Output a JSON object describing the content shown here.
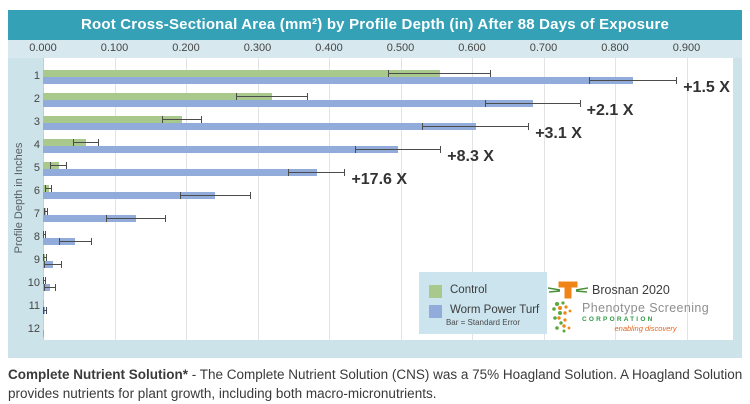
{
  "chart_data": {
    "type": "bar",
    "orientation": "horizontal",
    "title": "Root Cross-Sectional Area (mm²) by Profile Depth (in) After 88 Days of Exposure",
    "ylabel": "Profile Depth in Inches",
    "x_tick_labels": [
      "0.000",
      "0.100",
      "0.200",
      "0.300",
      "0.400",
      "0.500",
      "0.600",
      "0.700",
      "0.800",
      "0.900"
    ],
    "xlim": [
      0,
      0.965
    ],
    "grid": true,
    "categories": [
      "1",
      "2",
      "3",
      "4",
      "5",
      "6",
      "7",
      "8",
      "9",
      "10",
      "11",
      "12"
    ],
    "series": [
      {
        "name": "Control",
        "color": "#a8c88c",
        "values": [
          0.555,
          0.32,
          0.195,
          0.06,
          0.022,
          0.008,
          0.004,
          0.002,
          0.003,
          0.002,
          0.001,
          0.0
        ],
        "errors": [
          0.072,
          0.05,
          0.028,
          0.018,
          0.012,
          0.005,
          0.003,
          0.002,
          0.003,
          0.002,
          0.001,
          0.0
        ]
      },
      {
        "name": "Worm Power Turf",
        "color": "#91acda",
        "values": [
          0.825,
          0.685,
          0.605,
          0.497,
          0.383,
          0.241,
          0.13,
          0.045,
          0.014,
          0.01,
          0.003,
          0.001
        ],
        "errors": [
          0.062,
          0.067,
          0.075,
          0.06,
          0.04,
          0.05,
          0.042,
          0.023,
          0.012,
          0.008,
          0.003,
          0.001
        ]
      }
    ],
    "annotations": [
      {
        "row": 1,
        "label": "+1.5 X"
      },
      {
        "row": 2,
        "label": "+2.1 X"
      },
      {
        "row": 3,
        "label": "+3.1 X"
      },
      {
        "row": 4,
        "label": "+8.3 X"
      },
      {
        "row": 5,
        "label": "+17.6 X"
      }
    ],
    "legend_note": "Bar = Standard Error",
    "legend_position": "inside-bottom-right"
  },
  "logos": {
    "brosnan": "Brosnan 2020",
    "phenotype_line1": "Phenotype Screening",
    "phenotype_line2": "CORPORATION",
    "phenotype_line3": "enabling discovery"
  },
  "footnote": {
    "bold": "Complete Nutrient Solution*",
    "rest": " - The Complete Nutrient Solution (CNS) was a 75% Hoagland Solution. A Hoagland Solution provides nutrients for plant growth, including both macro-micronutrients."
  },
  "colors": {
    "title_bg": "#35a1b6",
    "chart_bg": "#cde3ea",
    "axis_strip_bg": "#d7e9ee",
    "control": "#a8c88c",
    "worm_power_turf": "#91acda",
    "error_bar": "#4c4c4c",
    "annotation": "#333333"
  }
}
